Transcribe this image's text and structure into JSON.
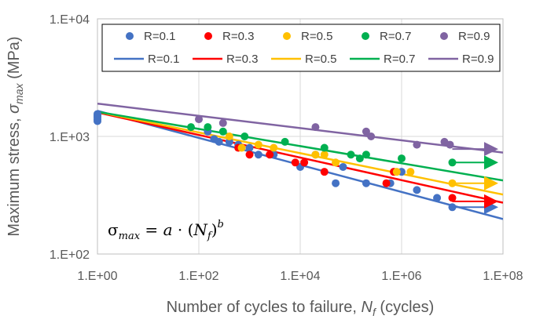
{
  "chart_data": {
    "type": "scatter",
    "xscale": "log",
    "yscale": "log",
    "xlim": [
      1,
      100000000
    ],
    "ylim": [
      100,
      10000
    ],
    "xticks": [
      "1.E+00",
      "1.E+02",
      "1.E+04",
      "1.E+06",
      "1.E+08"
    ],
    "yticks": [
      "1.E+02",
      "1.E+03",
      "1.E+04"
    ],
    "xlabel": {
      "prefix": "Number of cycles to failure, ",
      "var": "N",
      "sub": "f",
      "suffix": " (cycles)"
    },
    "ylabel": {
      "prefix": "Maximum stress, ",
      "var": "σ",
      "sub": "max",
      "suffix": " (MPa)"
    },
    "grid": "major gridlines",
    "legend_position": "top",
    "annotation": {
      "lhs": "σ",
      "lhs_sub": "max",
      "rhs_a": "a",
      "rhs_N": "N",
      "rhs_N_sub": "f",
      "exponent": "b"
    },
    "point_series": [
      {
        "name": "R=0.1",
        "color": "#4472C4",
        "points": [
          [
            1,
            1350
          ],
          [
            1,
            1400
          ],
          [
            1,
            1450
          ],
          [
            1,
            1500
          ],
          [
            1,
            1550
          ],
          [
            150,
            1100
          ],
          [
            200,
            950
          ],
          [
            250,
            900
          ],
          [
            400,
            900
          ],
          [
            600,
            850
          ],
          [
            1000,
            800
          ],
          [
            1500,
            700
          ],
          [
            3000,
            700
          ],
          [
            10000,
            550
          ],
          [
            20000,
            700
          ],
          [
            50000,
            400
          ],
          [
            70000,
            550
          ],
          [
            200000,
            400
          ],
          [
            600000,
            400
          ],
          [
            1000000,
            500
          ],
          [
            2000000,
            350
          ],
          [
            5000000,
            300
          ],
          [
            10000000,
            250
          ]
        ],
        "arrow": [
          10000000,
          250
        ]
      },
      {
        "name": "R=0.3",
        "color": "#FF0000",
        "points": [
          [
            600,
            800
          ],
          [
            1000,
            700
          ],
          [
            2500,
            700
          ],
          [
            8000,
            600
          ],
          [
            12000,
            600
          ],
          [
            30000,
            500
          ],
          [
            500000,
            400
          ],
          [
            700000,
            500
          ],
          [
            10000000,
            300
          ]
        ],
        "arrow": [
          10000000,
          280
        ]
      },
      {
        "name": "R=0.5",
        "color": "#FFC000",
        "points": [
          [
            400,
            1000
          ],
          [
            700,
            800
          ],
          [
            1500,
            850
          ],
          [
            3000,
            800
          ],
          [
            20000,
            700
          ],
          [
            30000,
            700
          ],
          [
            50000,
            600
          ],
          [
            800000,
            500
          ],
          [
            1500000,
            500
          ],
          [
            10000000,
            400
          ]
        ],
        "arrow": [
          10000000,
          400
        ]
      },
      {
        "name": "R=0.7",
        "color": "#00B050",
        "points": [
          [
            70,
            1200
          ],
          [
            150,
            1200
          ],
          [
            300,
            1100
          ],
          [
            800,
            1000
          ],
          [
            5000,
            900
          ],
          [
            30000,
            800
          ],
          [
            100000,
            700
          ],
          [
            150000,
            650
          ],
          [
            200000,
            700
          ],
          [
            1000000,
            650
          ],
          [
            10000000,
            600
          ]
        ],
        "arrow": [
          10000000,
          600
        ]
      },
      {
        "name": "R=0.9",
        "color": "#8064A2",
        "points": [
          [
            100,
            1400
          ],
          [
            300,
            1300
          ],
          [
            20000,
            1200
          ],
          [
            200000,
            1100
          ],
          [
            250000,
            1000
          ],
          [
            2000000,
            850
          ],
          [
            7000000,
            900
          ],
          [
            9000000,
            850
          ]
        ],
        "arrow": [
          10000000,
          780
        ]
      }
    ],
    "fit_series": [
      {
        "name": "R=0.1",
        "color": "#4472C4",
        "a": 1650,
        "b": -0.115
      },
      {
        "name": "R=0.3",
        "color": "#FF0000",
        "a": 1600,
        "b": -0.096
      },
      {
        "name": "R=0.5",
        "color": "#FFC000",
        "a": 1620,
        "b": -0.088
      },
      {
        "name": "R=0.7",
        "color": "#00B050",
        "a": 1620,
        "b": -0.073
      },
      {
        "name": "R=0.9",
        "color": "#8064A2",
        "a": 1900,
        "b": -0.052
      }
    ]
  }
}
